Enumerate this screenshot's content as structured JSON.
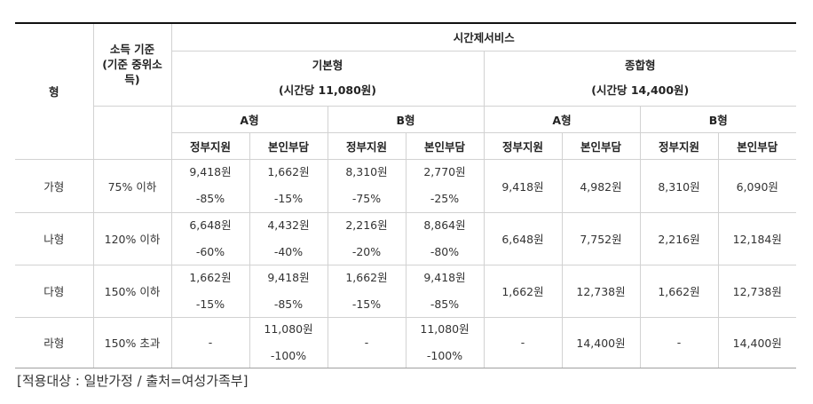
{
  "header": {
    "type": "형",
    "income_line1": "소득 기준",
    "income_line2": "(기준 중위소득)",
    "service": "시간제서비스",
    "basic": "기본형",
    "basic_rate": "(시간당 11,080원)",
    "combined": "종합형",
    "combined_rate": "(시간당 14,400원)",
    "a_type": "A형",
    "b_type": "B형",
    "gov": "정부지원",
    "self": "본인부담"
  },
  "rows": [
    {
      "type": "가형",
      "income": "75% 이하",
      "basic_a_gov": "9,418원",
      "basic_a_gov_pct": "-85%",
      "basic_a_self": "1,662원",
      "basic_a_self_pct": "-15%",
      "basic_b_gov": "8,310원",
      "basic_b_gov_pct": "-75%",
      "basic_b_self": "2,770원",
      "basic_b_self_pct": "-25%",
      "comb_a_gov": "9,418원",
      "comb_a_self": "4,982원",
      "comb_b_gov": "8,310원",
      "comb_b_self": "6,090원"
    },
    {
      "type": "나형",
      "income": "120% 이하",
      "basic_a_gov": "6,648원",
      "basic_a_gov_pct": "-60%",
      "basic_a_self": "4,432원",
      "basic_a_self_pct": "-40%",
      "basic_b_gov": "2,216원",
      "basic_b_gov_pct": "-20%",
      "basic_b_self": "8,864원",
      "basic_b_self_pct": "-80%",
      "comb_a_gov": "6,648원",
      "comb_a_self": "7,752원",
      "comb_b_gov": "2,216원",
      "comb_b_self": "12,184원"
    },
    {
      "type": "다형",
      "income": "150% 이하",
      "basic_a_gov": "1,662원",
      "basic_a_gov_pct": "-15%",
      "basic_a_self": "9,418원",
      "basic_a_self_pct": "-85%",
      "basic_b_gov": "1,662원",
      "basic_b_gov_pct": "-15%",
      "basic_b_self": "9,418원",
      "basic_b_self_pct": "-85%",
      "comb_a_gov": "1,662원",
      "comb_a_self": "12,738원",
      "comb_b_gov": "1,662원",
      "comb_b_self": "12,738원"
    },
    {
      "type": "라형",
      "income": "150% 초과",
      "basic_a_gov": "-",
      "basic_a_gov_pct": "",
      "basic_a_self": "11,080원",
      "basic_a_self_pct": "-100%",
      "basic_b_gov": "-",
      "basic_b_gov_pct": "",
      "basic_b_self": "11,080원",
      "basic_b_self_pct": "-100%",
      "comb_a_gov": "-",
      "comb_a_self": "14,400원",
      "comb_b_gov": "-",
      "comb_b_self": "14,400원"
    }
  ],
  "source_note": "[적용대상 : 일반가정 / 출처=여성가족부]"
}
